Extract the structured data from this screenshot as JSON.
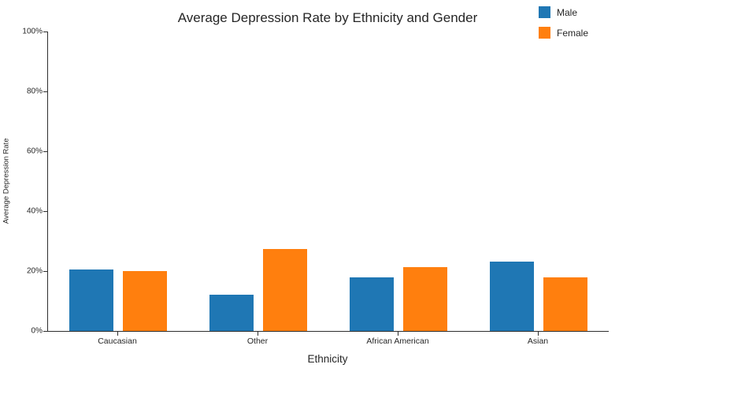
{
  "chart_data": {
    "type": "bar",
    "title": "Average Depression Rate by Ethnicity and Gender",
    "xlabel": "Ethnicity",
    "ylabel": "Average Depression Rate",
    "categories": [
      "Caucasian",
      "Other",
      "African American",
      "Asian"
    ],
    "series": [
      {
        "name": "Male",
        "color": "#1f77b4",
        "values": [
          20.5,
          12.0,
          18.0,
          23.2
        ]
      },
      {
        "name": "Female",
        "color": "#ff7f0e",
        "values": [
          20.0,
          27.5,
          21.2,
          18.0
        ]
      }
    ],
    "ylim": [
      0,
      100
    ],
    "yticks": [
      0,
      20,
      40,
      60,
      80,
      100
    ],
    "ytick_suffix": "%",
    "grid": false,
    "legend_position": "top-right"
  }
}
